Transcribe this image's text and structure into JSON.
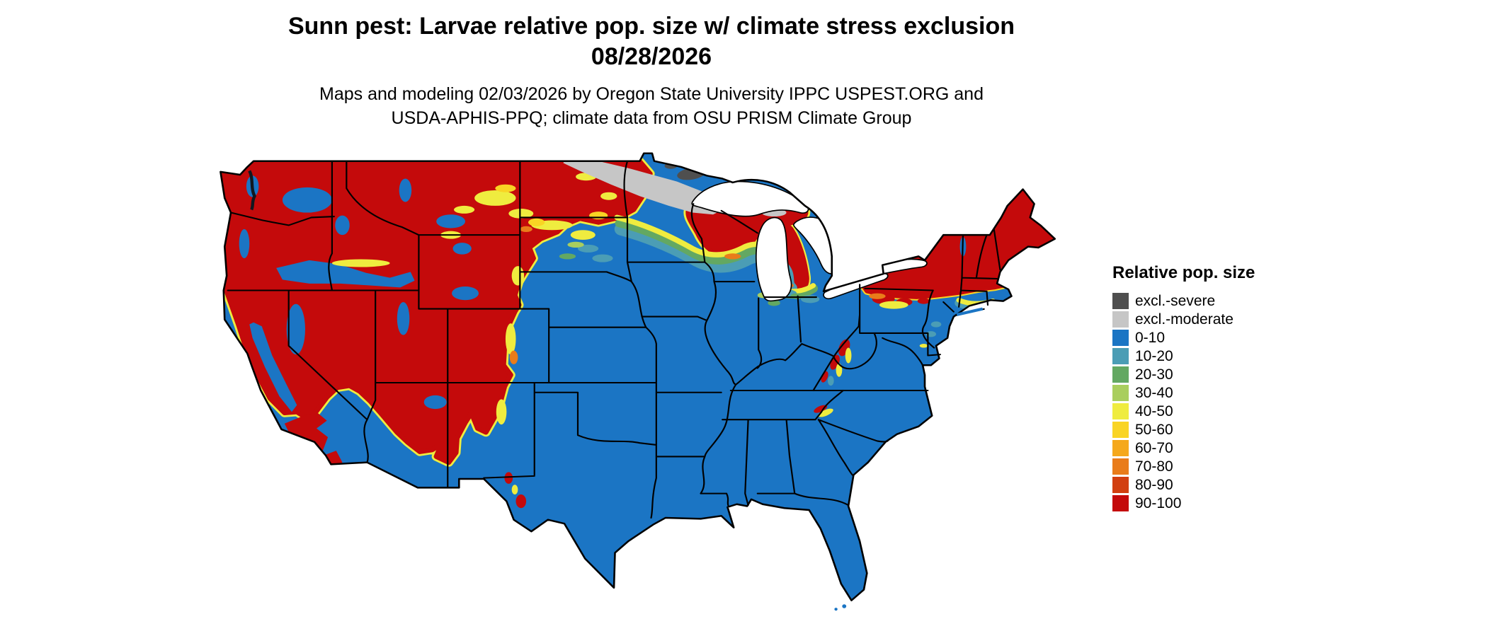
{
  "header": {
    "title_line1": "Sunn pest: Larvae relative pop. size w/ climate stress exclusion",
    "title_line2": "08/28/2026",
    "subtitle_line1": "Maps and modeling 02/03/2026 by Oregon State University IPPC USPEST.ORG and",
    "subtitle_line2": "USDA-APHIS-PPQ; climate data from OSU PRISM Climate Group"
  },
  "legend": {
    "title": "Relative pop. size",
    "items": [
      {
        "key": "excl_severe",
        "label": "excl.-severe",
        "color": "#4F4F4F"
      },
      {
        "key": "excl_moderate",
        "label": "excl.-moderate",
        "color": "#C6C6C6"
      },
      {
        "key": "v0_10",
        "label": "0-10",
        "color": "#1B75C4"
      },
      {
        "key": "v10_20",
        "label": "10-20",
        "color": "#4B9DB5"
      },
      {
        "key": "v20_30",
        "label": "20-30",
        "color": "#63A862"
      },
      {
        "key": "v30_40",
        "label": "30-40",
        "color": "#A9CE5E"
      },
      {
        "key": "v40_50",
        "label": "40-50",
        "color": "#EFEC3F"
      },
      {
        "key": "v50_60",
        "label": "50-60",
        "color": "#F9D424"
      },
      {
        "key": "v60_70",
        "label": "60-70",
        "color": "#F5A81C"
      },
      {
        "key": "v70_80",
        "label": "70-80",
        "color": "#E97C1A"
      },
      {
        "key": "v80_90",
        "label": "80-90",
        "color": "#D23F10"
      },
      {
        "key": "v90_100",
        "label": "90-100",
        "color": "#C40A0B"
      }
    ]
  },
  "map": {
    "region": "Continental United States",
    "line_color": "#000000",
    "water_color": "#FFFFFF"
  }
}
